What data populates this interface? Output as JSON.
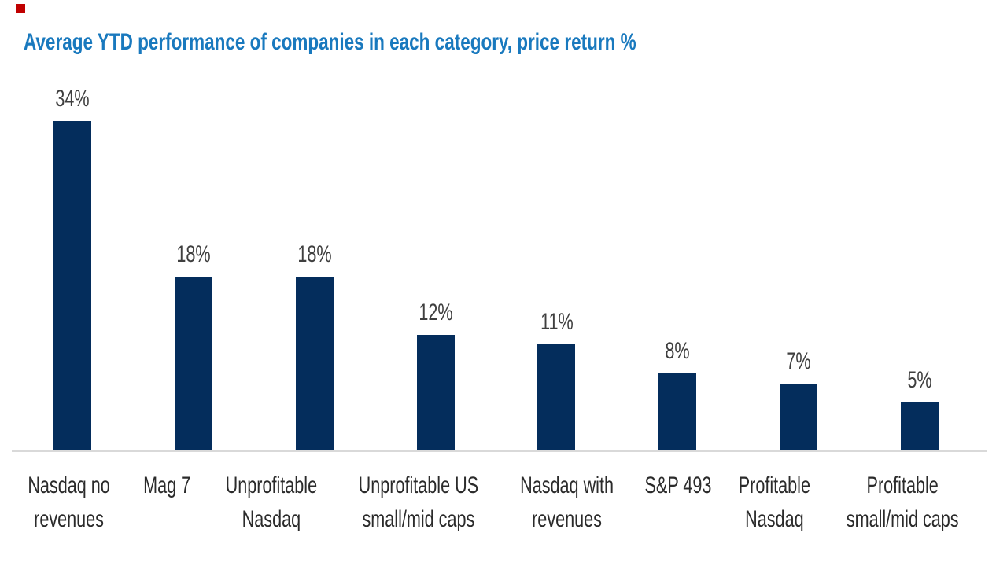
{
  "title": "Average YTD performance of companies in each category, price return %",
  "decorations": {
    "red_square_color": "#C00000"
  },
  "colors": {
    "title_blue": "#1979BE",
    "bar_navy": "#042D5C",
    "axis_gray": "#D9D9D9",
    "value_label_gray": "#3F3F3F",
    "category_label_dark": "#2B2B2B",
    "background": "#FFFFFF"
  },
  "chart_data": {
    "type": "bar",
    "title": "Average YTD performance of companies in each category, price return %",
    "categories": [
      "Nasdaq no revenues",
      "Mag 7",
      "Unprofitable Nasdaq",
      "Unprofitable US small/mid caps",
      "Nasdaq with revenues",
      "S&P 493",
      "Profitable Nasdaq",
      "Profitable small/mid caps"
    ],
    "category_lines": [
      [
        "Nasdaq no",
        "revenues"
      ],
      [
        "Mag 7"
      ],
      [
        "Unprofitable",
        "Nasdaq"
      ],
      [
        "Unprofitable US",
        "small/mid caps"
      ],
      [
        "Nasdaq with",
        "revenues"
      ],
      [
        "S&P 493"
      ],
      [
        "Profitable",
        "Nasdaq"
      ],
      [
        "Profitable",
        "small/mid caps"
      ]
    ],
    "values": [
      34,
      18,
      18,
      12,
      11,
      8,
      7,
      5
    ],
    "value_labels": [
      "34%",
      "18%",
      "18%",
      "12%",
      "11%",
      "8%",
      "7%",
      "5%"
    ],
    "unit": "%",
    "xlabel": "",
    "ylabel": "",
    "ylim": [
      0,
      38
    ],
    "grid": false,
    "legend": "none",
    "data_labels": "above-bars",
    "y_axis_visible": false,
    "x_axis_visible": true
  }
}
